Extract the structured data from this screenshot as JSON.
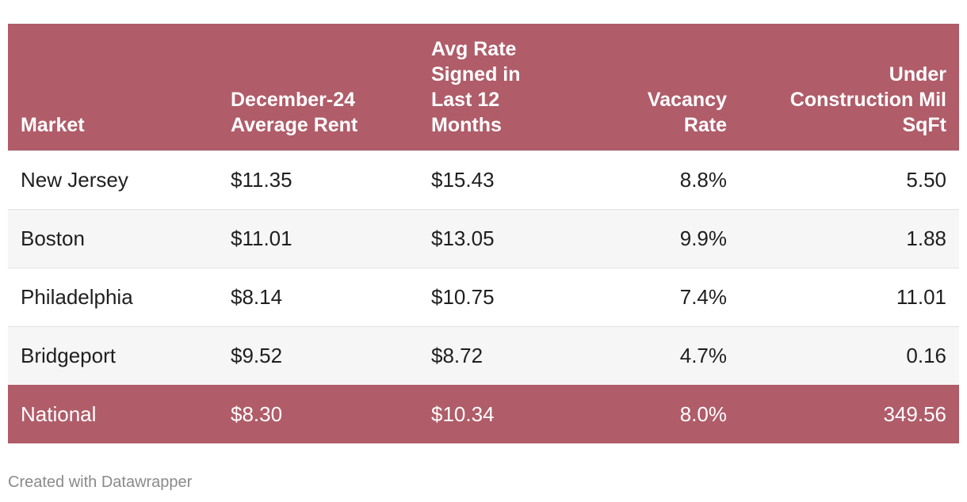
{
  "chart_data": {
    "type": "table",
    "columns": [
      "Market",
      "December-24 Average Rent",
      "Avg Rate Signed in Last 12 Months",
      "Vacancy Rate",
      "Under Construction Mil SqFt"
    ],
    "header_lines": [
      [
        "Market"
      ],
      [
        "December-24",
        "Average Rent"
      ],
      [
        "Avg Rate",
        "Signed in",
        "Last 12",
        "Months"
      ],
      [
        "Vacancy",
        "Rate"
      ],
      [
        "Under",
        "Construction Mil",
        "SqFt"
      ]
    ],
    "rows": [
      [
        "New Jersey",
        "$11.35",
        "$15.43",
        "8.8%",
        "5.50"
      ],
      [
        "Boston",
        "$11.01",
        "$13.05",
        "9.9%",
        "1.88"
      ],
      [
        "Philadelphia",
        "$8.14",
        "$10.75",
        "7.4%",
        "11.01"
      ],
      [
        "Bridgeport",
        "$9.52",
        "$8.72",
        "4.7%",
        "0.16"
      ],
      [
        "National",
        "$8.30",
        "$10.34",
        "8.0%",
        "349.56"
      ]
    ],
    "highlight_row": "National",
    "colors": {
      "header_bg": "#b05c69",
      "header_text": "#ffffff",
      "stripe": "#f6f6f6"
    }
  },
  "footer": "Created with Datawrapper"
}
